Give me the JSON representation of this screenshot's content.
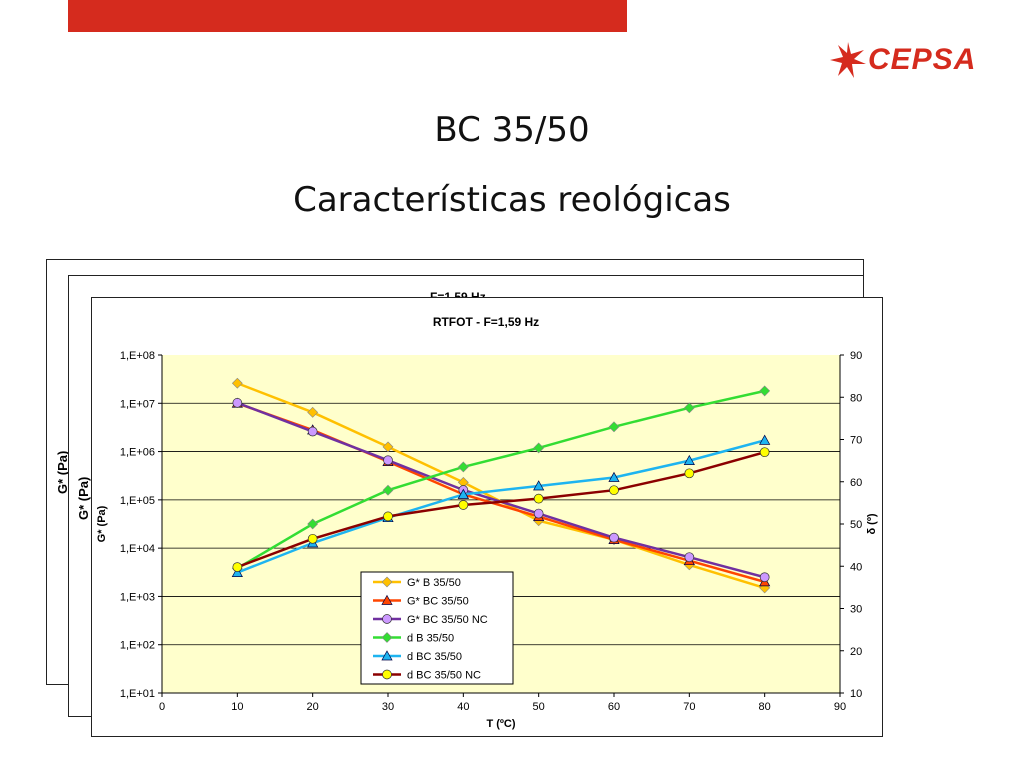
{
  "colors": {
    "top_bar": "#D52B1E",
    "brand": "#D52B1E",
    "plot_bg": "#FFFFCC",
    "text": "#000000"
  },
  "logo": {
    "icon": "cepsa-star-icon",
    "text": "CEPSA"
  },
  "slide": {
    "title": "BC 35/50",
    "subtitle": "Características reológicas"
  },
  "back_charts": [
    {
      "title": "F=1,59 Hz",
      "ylabel": "G* (Pa)"
    },
    {
      "title": "",
      "ylabel": "G* (Pa)"
    }
  ],
  "chart_data": {
    "type": "line",
    "title": "RTFOT - F=1,59 Hz",
    "xlabel": "T (ºC)",
    "ylabel": "G* (Pa)",
    "y2label": "δ (º)",
    "xlim": [
      0,
      90
    ],
    "x_ticks": [
      "0",
      "10",
      "20",
      "30",
      "40",
      "50",
      "60",
      "70",
      "80",
      "90"
    ],
    "ylim": [
      10.0,
      100000000.0
    ],
    "yscale": "log",
    "y_ticks": [
      "1,E+01",
      "1,E+02",
      "1,E+03",
      "1,E+04",
      "1,E+05",
      "1,E+06",
      "1,E+07",
      "1,E+08"
    ],
    "y2lim": [
      10,
      90
    ],
    "y2_ticks": [
      "10",
      "20",
      "30",
      "40",
      "50",
      "60",
      "70",
      "80",
      "90"
    ],
    "grid": true,
    "legend_position": "bottom-center",
    "x": [
      10,
      20,
      30,
      40,
      50,
      60,
      70,
      80
    ],
    "series": [
      {
        "name": "G* B 35/50",
        "axis": "left",
        "color": "#FFC000",
        "marker": "diamond",
        "values": [
          26000000,
          6500000,
          1250000,
          230000,
          37000,
          15000,
          4500,
          1500
        ]
      },
      {
        "name": "G* BC 35/50",
        "axis": "left",
        "color": "#FF4500",
        "marker": "triangle",
        "values": [
          10000000,
          2800000,
          620000,
          130000,
          45000,
          15000,
          5500,
          2000
        ]
      },
      {
        "name": "G* BC 35/50 NC",
        "axis": "left",
        "color": "#7030A0",
        "marker": "circle",
        "values": [
          10200000,
          2600000,
          660000,
          160000,
          52000,
          16500,
          6500,
          2500
        ]
      },
      {
        "name": "d B 35/50",
        "axis": "right",
        "color": "#33DD33",
        "marker": "diamond",
        "values": [
          39.5,
          50,
          58,
          63.5,
          68,
          73,
          77.5,
          81.5
        ]
      },
      {
        "name": "d BC 35/50",
        "axis": "right",
        "color": "#1EB4F0",
        "marker": "triangle",
        "values": [
          38.5,
          45.5,
          51.5,
          57,
          59,
          61,
          65,
          69.8
        ]
      },
      {
        "name": "d BC 35/50 NC",
        "axis": "right",
        "color": "#8B0000",
        "marker": "circle",
        "values": [
          39.8,
          46.5,
          51.8,
          54.5,
          56,
          58,
          62,
          67
        ]
      }
    ]
  }
}
